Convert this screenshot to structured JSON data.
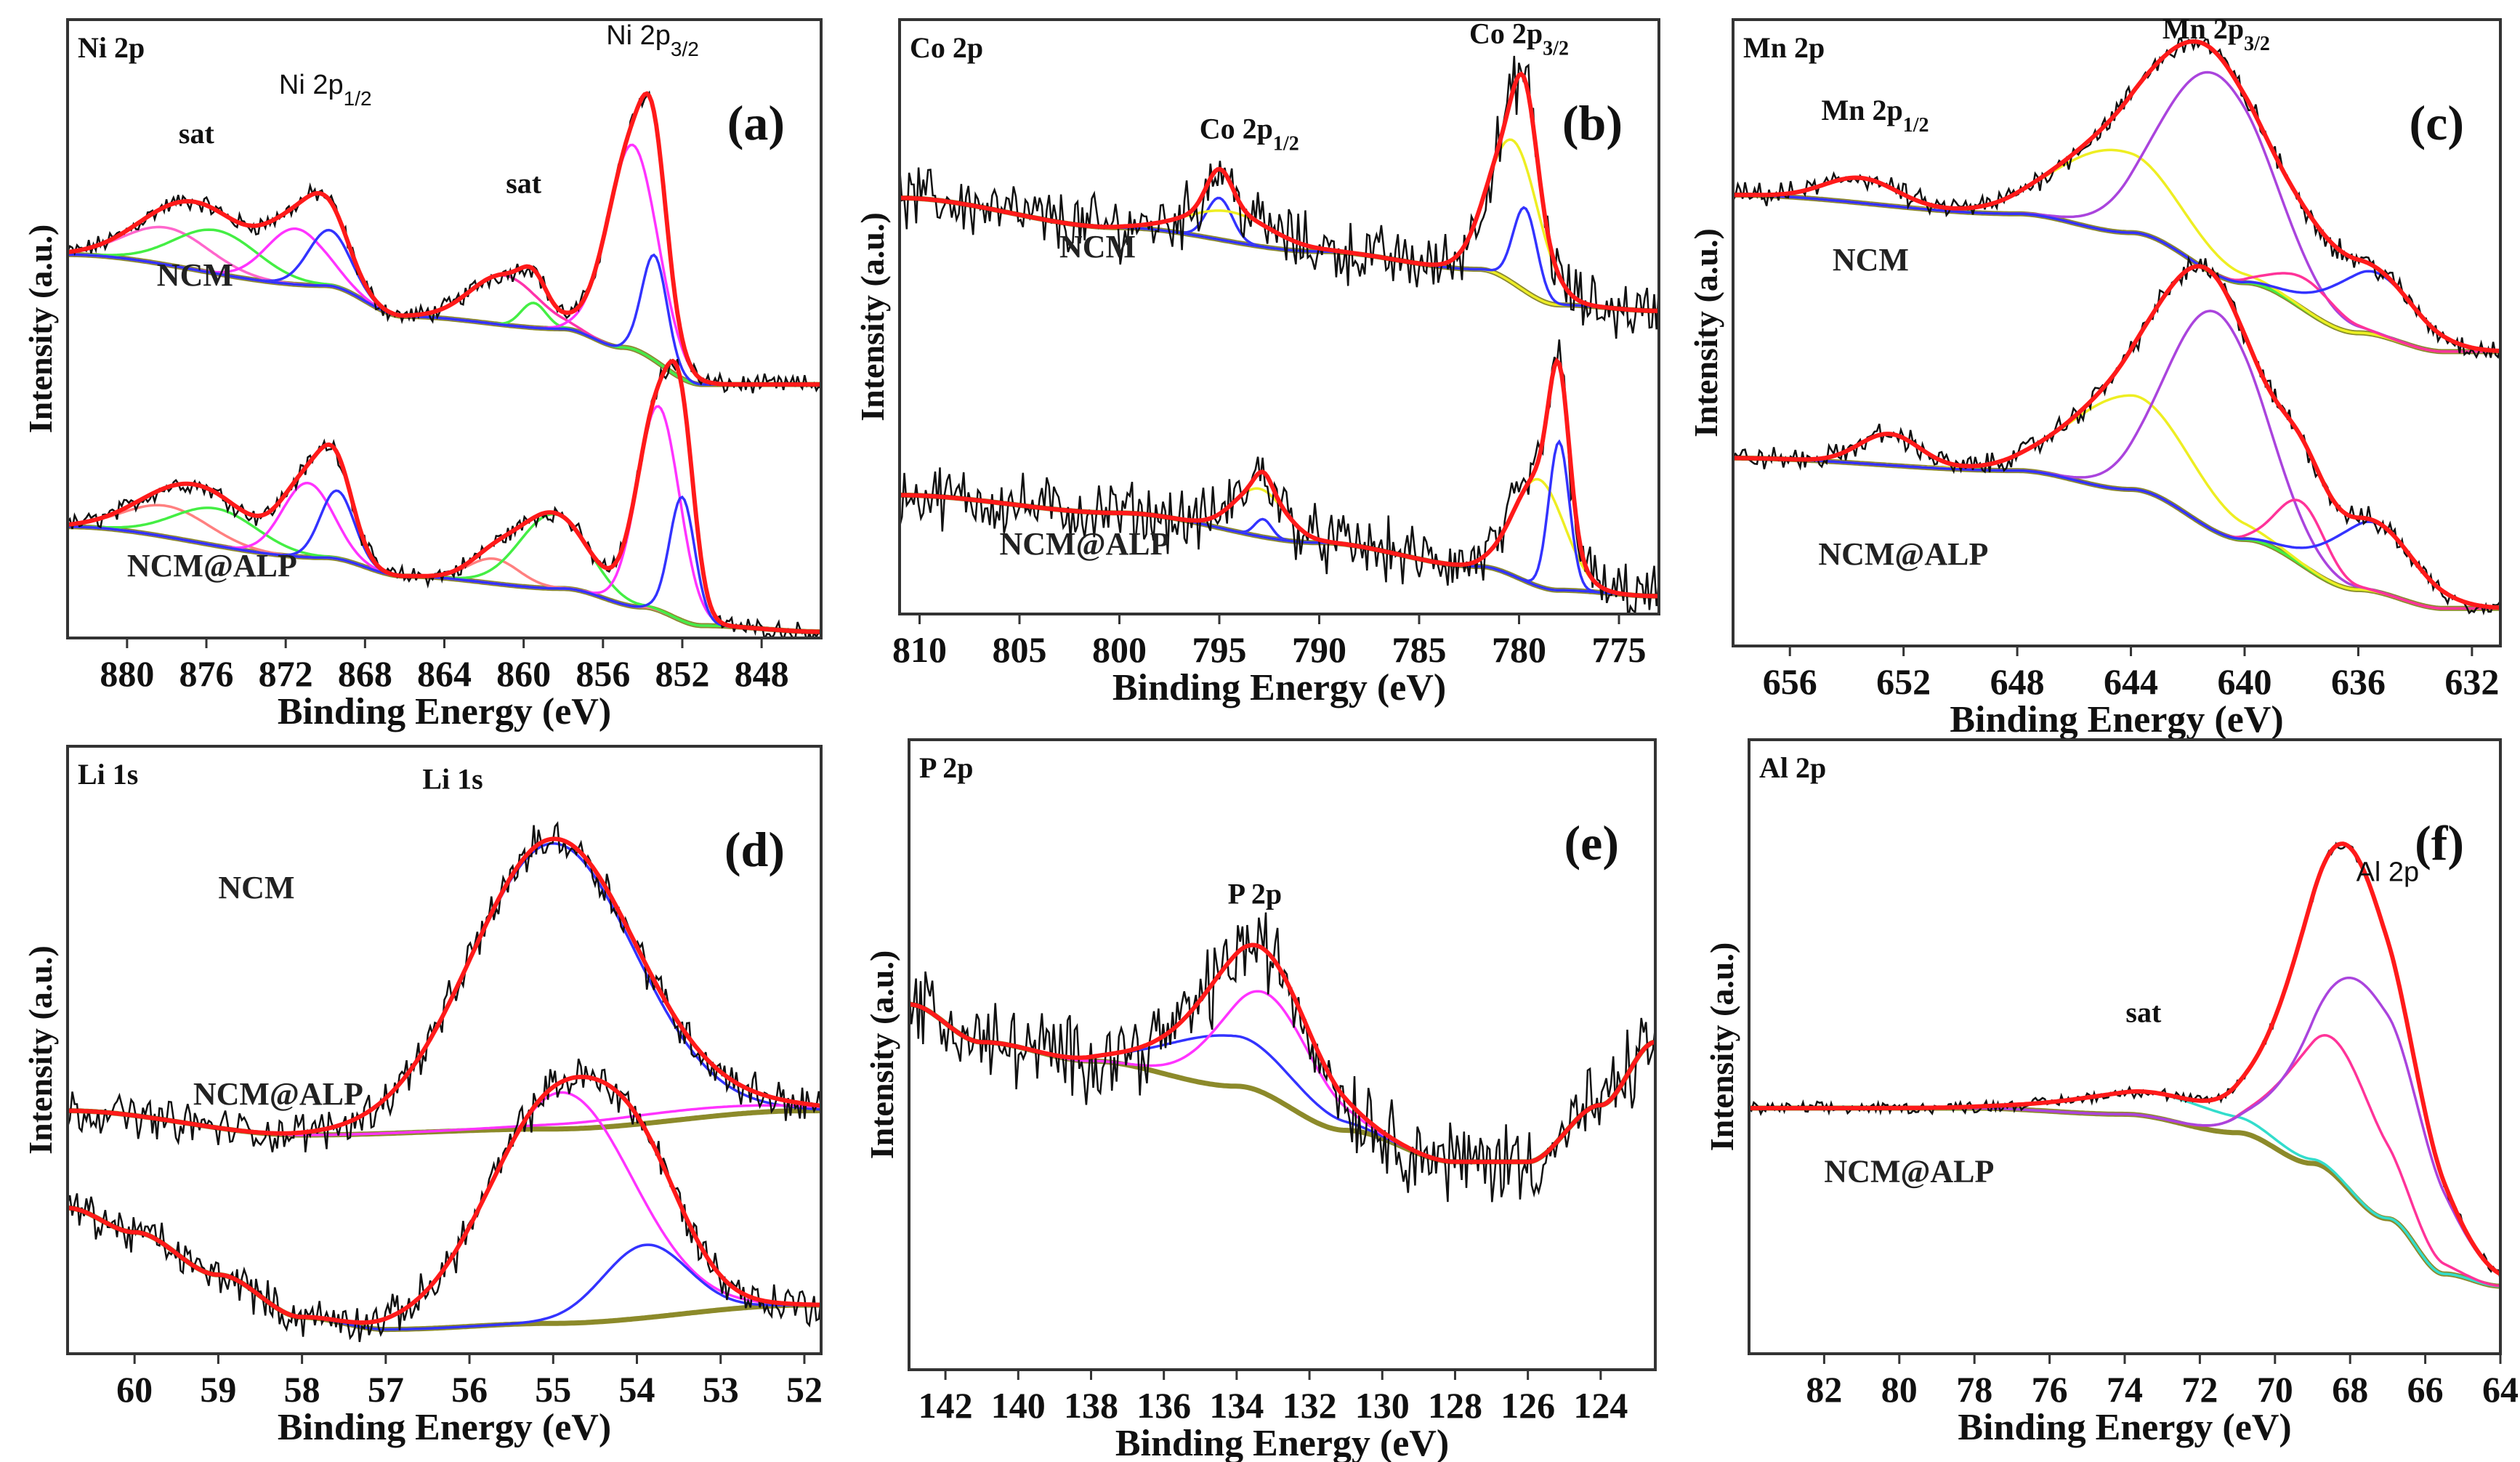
{
  "chart_data": [
    {
      "id": "a",
      "type": "line",
      "panel_letter": "(a)",
      "title": "Ni 2p",
      "xlabel": "Binding Energy (eV)",
      "ylabel": "Intensity (a.u.)",
      "xlim": [
        883,
        845
      ],
      "ylim": [
        0,
        100
      ],
      "xticks": [
        880,
        876,
        872,
        868,
        864,
        860,
        856,
        852,
        848
      ],
      "annotations": [
        {
          "text": "sat"
        },
        {
          "text": "Ni 2p",
          "sub": "1/2"
        },
        {
          "text": "sat"
        },
        {
          "text": "Ni 2p",
          "sub": "3/2"
        }
      ],
      "spectra": [
        {
          "name": "NCM",
          "baseline": [
            [
              883,
              62
            ],
            [
              870,
              57
            ],
            [
              866,
              52
            ],
            [
              858,
              50
            ],
            [
              855,
              47
            ],
            [
              851,
              41
            ],
            [
              845,
              41
            ]
          ],
          "peaks": [
            {
              "center": 878,
              "amp": 6,
              "fwhm": 5,
              "color": "#ff66cc"
            },
            {
              "center": 875.5,
              "amp": 7,
              "fwhm": 5,
              "color": "#44ee44"
            },
            {
              "center": 871.5,
              "amp": 9,
              "fwhm": 3.5,
              "color": "#ff33ff"
            },
            {
              "center": 869.8,
              "amp": 9,
              "fwhm": 2.5,
              "color": "#3333ff"
            },
            {
              "center": 861,
              "amp": 8,
              "fwhm": 4,
              "color": "#ff33aa"
            },
            {
              "center": 859.5,
              "amp": 4,
              "fwhm": 1.5,
              "color": "#44ee44"
            },
            {
              "center": 854.5,
              "amp": 33,
              "fwhm": 3,
              "color": "#ff33ff"
            },
            {
              "center": 853.4,
              "amp": 17,
              "fwhm": 1.5,
              "color": "#3333ff"
            }
          ]
        },
        {
          "name": "NCM@ALP",
          "baseline": [
            [
              883,
              18
            ],
            [
              870,
              13
            ],
            [
              866,
              10
            ],
            [
              858,
              8
            ],
            [
              854,
              5
            ],
            [
              851,
              2
            ],
            [
              845,
              1
            ]
          ],
          "peaks": [
            {
              "center": 878,
              "amp": 5,
              "fwhm": 5,
              "color": "#ff8080"
            },
            {
              "center": 875.5,
              "amp": 6,
              "fwhm": 5,
              "color": "#44ee44"
            },
            {
              "center": 870.9,
              "amp": 12,
              "fwhm": 3,
              "color": "#ff33ff"
            },
            {
              "center": 869.4,
              "amp": 11,
              "fwhm": 2,
              "color": "#3333ff"
            },
            {
              "center": 861.5,
              "amp": 4,
              "fwhm": 3,
              "color": "#ff8080"
            },
            {
              "center": 858.5,
              "amp": 12,
              "fwhm": 4,
              "color": "#44ee44"
            },
            {
              "center": 853.2,
              "amp": 33,
              "fwhm": 2.5,
              "color": "#ff33ff"
            },
            {
              "center": 852,
              "amp": 20,
              "fwhm": 1.5,
              "color": "#3333ff"
            }
          ]
        }
      ]
    },
    {
      "id": "b",
      "type": "line",
      "panel_letter": "(b)",
      "title": "Co 2p",
      "xlabel": "Binding Energy (eV)",
      "ylabel": "Intensity (a.u.)",
      "xlim": [
        811,
        773
      ],
      "ylim": [
        0,
        100
      ],
      "xticks": [
        810,
        805,
        800,
        795,
        790,
        785,
        780,
        775
      ],
      "annotations": [
        {
          "text": "Co 2p",
          "sub": "1/2"
        },
        {
          "text": "Co 2p",
          "sub": "3/2"
        }
      ],
      "spectra": [
        {
          "name": "NCM",
          "baseline": [
            [
              811,
              70
            ],
            [
              800,
              65
            ],
            [
              790,
              61
            ],
            [
              782,
              58
            ],
            [
              778,
              52
            ],
            [
              773,
              51
            ]
          ],
          "peaks": [
            {
              "center": 795,
              "amp": 7,
              "fwhm": 1.5,
              "color": "#3333ff"
            },
            {
              "center": 794.5,
              "amp": 5,
              "fwhm": 5,
              "color": "#eeee22"
            },
            {
              "center": 780.3,
              "amp": 24,
              "fwhm": 3,
              "color": "#eeee22"
            },
            {
              "center": 779.7,
              "amp": 14,
              "fwhm": 1.4,
              "color": "#3333ff"
            }
          ]
        },
        {
          "name": "NCM@ALP",
          "baseline": [
            [
              811,
              20
            ],
            [
              800,
              17
            ],
            [
              790,
              12
            ],
            [
              782,
              8
            ],
            [
              778,
              4
            ],
            [
              773,
              3
            ]
          ],
          "peaks": [
            {
              "center": 793,
              "amp": 8,
              "fwhm": 3,
              "color": "#eeee22"
            },
            {
              "center": 792.8,
              "amp": 3,
              "fwhm": 1,
              "color": "#3333ff"
            },
            {
              "center": 779,
              "amp": 18,
              "fwhm": 3,
              "color": "#eeee22"
            },
            {
              "center": 778,
              "amp": 25,
              "fwhm": 1.2,
              "color": "#3333ff"
            }
          ]
        }
      ]
    },
    {
      "id": "c",
      "type": "line",
      "panel_letter": "(c)",
      "title": "Mn 2p",
      "xlabel": "Binding Energy (eV)",
      "ylabel": "Intensity (a.u.)",
      "xlim": [
        658,
        631
      ],
      "ylim": [
        0,
        100
      ],
      "xticks": [
        656,
        652,
        648,
        644,
        640,
        636,
        632
      ],
      "annotations": [
        {
          "text": "Mn 2p",
          "sub": "1/2"
        },
        {
          "text": "Mn 2p",
          "sub": "3/2"
        }
      ],
      "spectra": [
        {
          "name": "NCM",
          "baseline": [
            [
              658,
              72
            ],
            [
              648,
              69
            ],
            [
              644,
              66
            ],
            [
              640,
              58
            ],
            [
              636,
              50
            ],
            [
              633,
              47
            ],
            [
              631,
              47
            ]
          ],
          "peaks": [
            {
              "center": 653.5,
              "amp": 4,
              "fwhm": 3,
              "color": "#44ee44"
            },
            {
              "center": 644.5,
              "amp": 13,
              "fwhm": 5,
              "color": "#eeee22"
            },
            {
              "center": 641,
              "amp": 32,
              "fwhm": 4.5,
              "color": "#aa44dd"
            },
            {
              "center": 637.8,
              "amp": 5,
              "fwhm": 2.5,
              "color": "#ff3399"
            },
            {
              "center": 635.5,
              "amp": 10,
              "fwhm": 3.5,
              "color": "#3333ff"
            }
          ]
        },
        {
          "name": "NCM@ALP",
          "baseline": [
            [
              658,
              30
            ],
            [
              648,
              28
            ],
            [
              644,
              25
            ],
            [
              640,
              17
            ],
            [
              636,
              9
            ],
            [
              633,
              6
            ],
            [
              631,
              6
            ]
          ],
          "peaks": [
            {
              "center": 652.5,
              "amp": 5,
              "fwhm": 2.5,
              "color": "#44ee44"
            },
            {
              "center": 644,
              "amp": 15,
              "fwhm": 5,
              "color": "#eeee22"
            },
            {
              "center": 641,
              "amp": 35,
              "fwhm": 4,
              "color": "#aa44dd"
            },
            {
              "center": 638,
              "amp": 10,
              "fwhm": 2,
              "color": "#ff3399"
            },
            {
              "center": 635.5,
              "amp": 11,
              "fwhm": 3.5,
              "color": "#3333ff"
            }
          ]
        }
      ]
    },
    {
      "id": "d",
      "type": "line",
      "panel_letter": "(d)",
      "title": "Li 1s",
      "xlabel": "Binding Energy (eV)",
      "ylabel": "Intensity (a.u.)",
      "xlim": [
        60.8,
        51.8
      ],
      "ylim": [
        0,
        100
      ],
      "xticks": [
        60,
        59,
        58,
        57,
        56,
        55,
        54,
        53,
        52
      ],
      "annotations": [
        {
          "text": "Li 1s"
        }
      ],
      "spectra": [
        {
          "name": "NCM",
          "baseline": [
            [
              60.8,
              40
            ],
            [
              58,
              36
            ],
            [
              55,
              37
            ],
            [
              52,
              40
            ],
            [
              51.8,
              40
            ]
          ],
          "peaks": [
            {
              "center": 55,
              "amp": 47,
              "fwhm": 2.3,
              "color": "#3333ff"
            },
            {
              "center": 53.5,
              "amp": 1.5,
              "fwhm": 3,
              "color": "#ff33ff"
            }
          ]
        },
        {
          "name": "NCM@ALP",
          "baseline": [
            [
              60.8,
              24
            ],
            [
              60,
              20
            ],
            [
              59,
              13
            ],
            [
              58,
              6
            ],
            [
              57,
              4
            ],
            [
              55,
              5
            ],
            [
              52,
              8
            ],
            [
              51.8,
              8
            ]
          ],
          "peaks": [
            {
              "center": 54.9,
              "amp": 38,
              "fwhm": 2,
              "color": "#ff33ff"
            },
            {
              "center": 53.9,
              "amp": 12,
              "fwhm": 1.2,
              "color": "#3333ff"
            }
          ]
        }
      ]
    },
    {
      "id": "e",
      "type": "line",
      "panel_letter": "(e)",
      "title": "P 2p",
      "xlabel": "Binding Energy (eV)",
      "ylabel": "Intensity (a.u.)",
      "xlim": [
        143,
        122.5
      ],
      "ylim": [
        0,
        100
      ],
      "xticks": [
        142,
        140,
        138,
        136,
        134,
        132,
        130,
        128,
        126,
        124
      ],
      "annotations": [
        {
          "text": "P 2p"
        }
      ],
      "spectra": [
        {
          "name": "",
          "baseline": [
            [
              143,
              58
            ],
            [
              141,
              52
            ],
            [
              138,
              49
            ],
            [
              134,
              45
            ],
            [
              131,
              38
            ],
            [
              128,
              33
            ],
            [
              126,
              33
            ],
            [
              124,
              42
            ],
            [
              122.5,
              52
            ]
          ],
          "peaks": [
            {
              "center": 134.2,
              "amp": 8,
              "fwhm": 4,
              "color": "#3333ff"
            },
            {
              "center": 133.2,
              "amp": 16,
              "fwhm": 3,
              "color": "#ff33ff"
            }
          ]
        }
      ]
    },
    {
      "id": "f",
      "type": "line",
      "panel_letter": "(f)",
      "title": "Al 2p",
      "xlabel": "Binding Energy (eV)",
      "ylabel": "Intensity (a.u.)",
      "xlim": [
        84,
        64
      ],
      "ylim": [
        0,
        100
      ],
      "xticks": [
        82,
        80,
        78,
        76,
        74,
        72,
        70,
        68,
        66,
        64
      ],
      "annotations": [
        {
          "text": "sat"
        },
        {
          "text": "Al 2p"
        }
      ],
      "spectra": [
        {
          "name": "NCM@ALP",
          "baseline": [
            [
              84,
              40
            ],
            [
              78,
              40
            ],
            [
              74,
              39
            ],
            [
              71,
              36
            ],
            [
              69,
              31
            ],
            [
              67,
              22
            ],
            [
              65.5,
              13
            ],
            [
              64,
              11
            ]
          ],
          "peaks": [
            {
              "center": 73,
              "amp": 4,
              "fwhm": 5,
              "color": "#33ddcc"
            },
            {
              "center": 68.4,
              "amp": 22,
              "fwhm": 3,
              "color": "#ff3399"
            },
            {
              "center": 67.6,
              "amp": 36,
              "fwhm": 3.5,
              "color": "#aa44dd"
            }
          ]
        }
      ]
    }
  ],
  "colors": {
    "raw": "#111111",
    "fit": "#ff1a1a",
    "background": "#8c8a2a",
    "frame": "#333333"
  }
}
